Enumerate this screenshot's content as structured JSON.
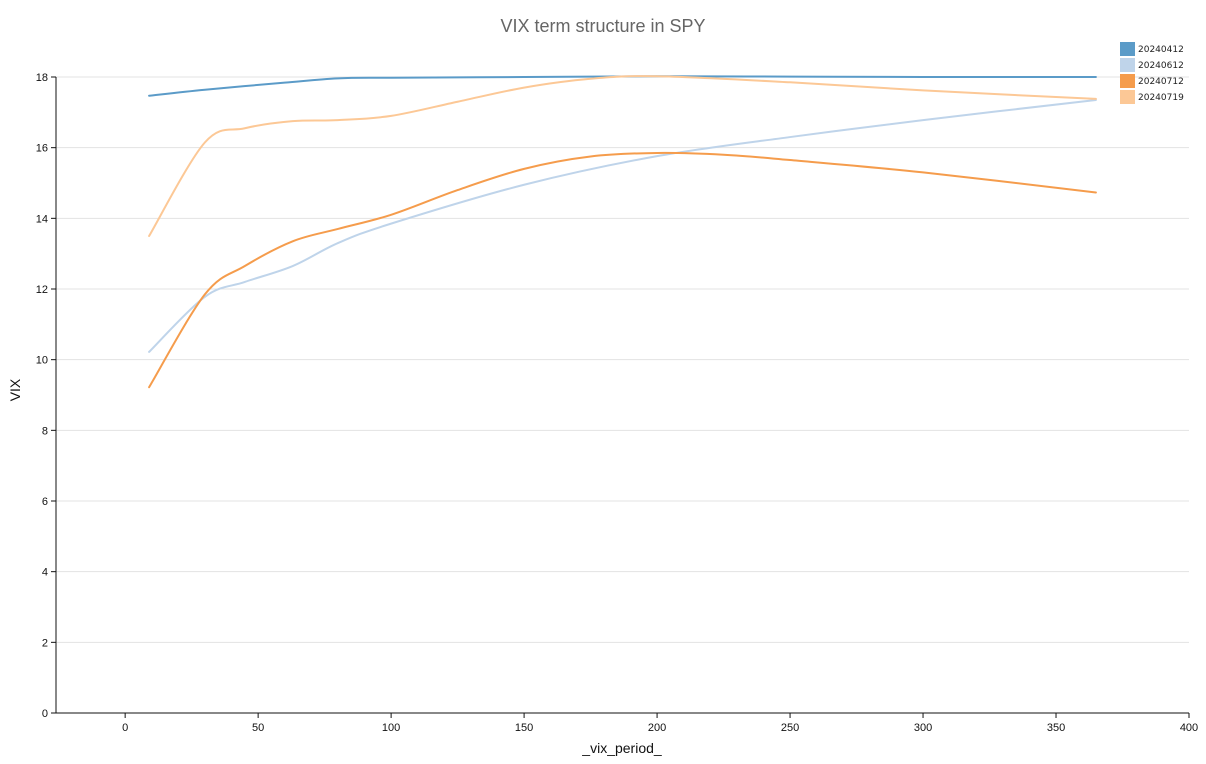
{
  "chart_data": {
    "type": "line",
    "title": "VIX term structure in SPY",
    "xlabel": "_vix_period_",
    "ylabel": "VIX",
    "xlim": [
      -26,
      400
    ],
    "ylim": [
      0,
      18
    ],
    "x_ticks": [
      0,
      50,
      100,
      150,
      200,
      250,
      300,
      350,
      400
    ],
    "y_ticks": [
      0,
      2,
      4,
      6,
      8,
      10,
      12,
      14,
      16,
      18
    ],
    "grid": "horizontal",
    "legend_position": "top-right",
    "series": [
      {
        "name": "20240412",
        "color": "#5b9bc8",
        "x": [
          9,
          30,
          60,
          80,
          100,
          150,
          200,
          250,
          300,
          365
        ],
        "y": [
          17.47,
          17.64,
          17.84,
          17.96,
          17.98,
          18.0,
          18.02,
          18.01,
          18.0,
          18.0
        ]
      },
      {
        "name": "20240612",
        "color": "#bfd4ea",
        "x": [
          9,
          30,
          45,
          63,
          80,
          100,
          150,
          200,
          250,
          300,
          365
        ],
        "y": [
          10.22,
          11.78,
          12.2,
          12.65,
          13.3,
          13.85,
          14.95,
          15.76,
          16.3,
          16.78,
          17.35
        ]
      },
      {
        "name": "20240712",
        "color": "#f59c4c",
        "x": [
          9,
          30,
          45,
          63,
          80,
          100,
          125,
          150,
          175,
          200,
          225,
          250,
          300,
          365
        ],
        "y": [
          9.22,
          11.85,
          12.65,
          13.35,
          13.7,
          14.1,
          14.8,
          15.4,
          15.75,
          15.85,
          15.8,
          15.65,
          15.3,
          14.73
        ]
      },
      {
        "name": "20240719",
        "color": "#fcc896",
        "x": [
          9,
          30,
          45,
          63,
          80,
          100,
          125,
          150,
          175,
          200,
          250,
          300,
          365
        ],
        "y": [
          13.5,
          16.15,
          16.55,
          16.75,
          16.78,
          16.9,
          17.3,
          17.7,
          17.95,
          18.02,
          17.85,
          17.62,
          17.38
        ]
      }
    ]
  }
}
